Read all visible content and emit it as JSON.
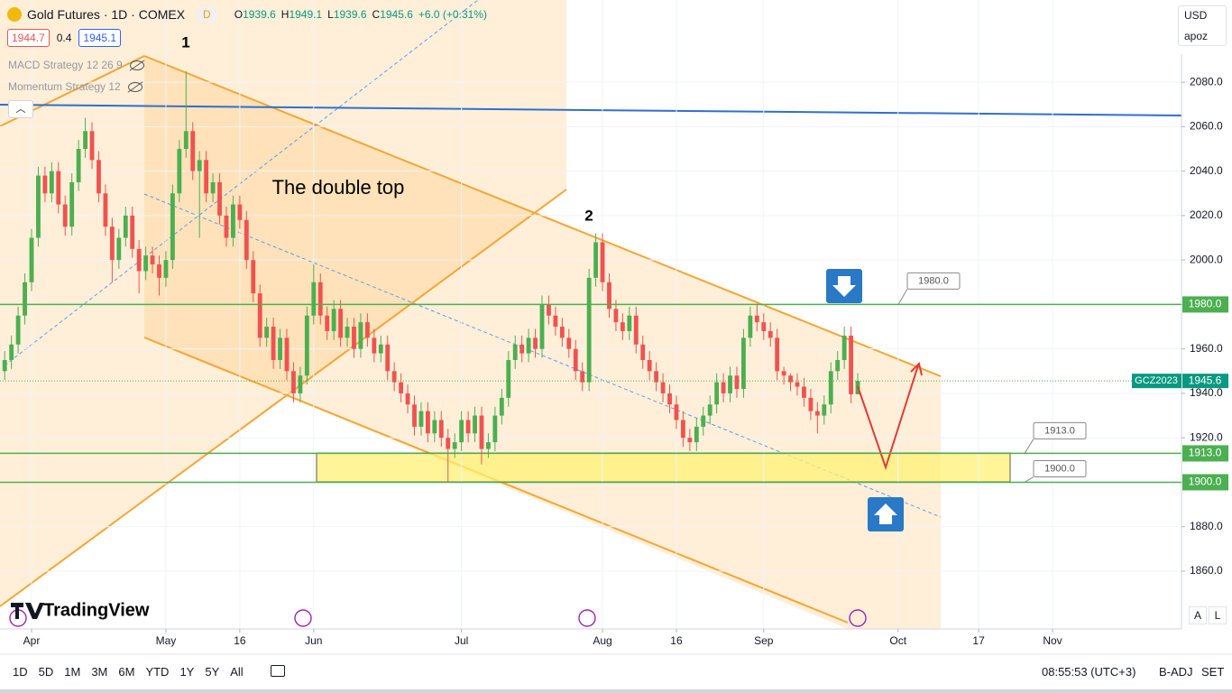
{
  "header": {
    "symbol": "Gold Futures · 1D · COMEX",
    "badge": "D",
    "ohlc_labels": [
      "O",
      "H",
      "L",
      "C"
    ],
    "change": "+6.0 (+0.31%)",
    "quote": {
      "bid": 1944.7,
      "spread": 0.4,
      "ask": 1945.1
    },
    "indicators": [
      "MACD Strategy 12 26 9",
      "Momentum Strategy 12"
    ]
  },
  "chart_data": {
    "type": "candlestick",
    "open": [
      1950,
      1955,
      1962,
      1975,
      1990,
      2010,
      2038,
      2030,
      2040,
      2025,
      2015,
      2035,
      2050,
      2058,
      2045,
      2030,
      2015,
      2000,
      2010,
      2020,
      2005,
      1995,
      2002,
      1998,
      1992,
      2000,
      2030,
      2050,
      2058,
      2040,
      2045,
      2030,
      2035,
      2020,
      2010,
      2025,
      2018,
      2000,
      1985,
      1965,
      1970,
      1955,
      1965,
      1950,
      1940,
      1948,
      1975,
      1990,
      1975,
      1968,
      1978,
      1965,
      1970,
      1960,
      1972,
      1965,
      1958,
      1962,
      1950,
      1945,
      1940,
      1935,
      1925,
      1932,
      1922,
      1928,
      1920,
      1915,
      1918,
      1928,
      1922,
      1930,
      1915,
      1918,
      1930,
      1938,
      1955,
      1962,
      1958,
      1965,
      1960,
      1980,
      1975,
      1970,
      1965,
      1960,
      1950,
      1945,
      1992,
      2008,
      1990,
      1978,
      1972,
      1968,
      1975,
      1962,
      1955,
      1950,
      1945,
      1940,
      1935,
      1928,
      1920,
      1918,
      1925,
      1930,
      1935,
      1945,
      1940,
      1948,
      1942,
      1965,
      1975,
      1972,
      1968,
      1965,
      1950,
      1948,
      1945,
      1943,
      1938,
      1932,
      1930,
      1935,
      1950,
      1955,
      1966,
      1939.6
    ],
    "high": [
      1959,
      1966,
      1979,
      1994,
      2014,
      2042,
      2042,
      2044,
      2044,
      2029,
      2039,
      2054,
      2064,
      2062,
      2049,
      2034,
      2019,
      2014,
      2024,
      2024,
      2009,
      2006,
      2006,
      2002,
      2004,
      2034,
      2054,
      2085,
      2062,
      2049,
      2049,
      2039,
      2039,
      2024,
      2029,
      2029,
      2022,
      2004,
      1989,
      1974,
      1974,
      1969,
      1969,
      1954,
      1952,
      1979,
      1998,
      1994,
      1979,
      1982,
      1982,
      1974,
      1974,
      1976,
      1976,
      1969,
      1966,
      1966,
      1954,
      1949,
      1944,
      1939,
      1936,
      1936,
      1932,
      1932,
      1924,
      1922,
      1932,
      1932,
      1934,
      1934,
      1922,
      1934,
      1942,
      1959,
      1966,
      1966,
      1969,
      1969,
      1984,
      1984,
      1979,
      1974,
      1969,
      1964,
      1954,
      1996,
      2012,
      2012,
      1994,
      1982,
      1976,
      1979,
      1979,
      1966,
      1959,
      1954,
      1949,
      1944,
      1939,
      1932,
      1924,
      1929,
      1934,
      1939,
      1949,
      1949,
      1952,
      1952,
      1969,
      1979,
      1980,
      1976,
      1972,
      1969,
      1952,
      1949,
      1949,
      1947,
      1942,
      1936,
      1939,
      1954,
      1959,
      1970,
      1970,
      1949.1
    ],
    "low": [
      1946,
      1951,
      1958,
      1971,
      1986,
      2006,
      2026,
      2026,
      2021,
      2011,
      2011,
      2031,
      2046,
      2041,
      2026,
      2011,
      1990,
      1996,
      2006,
      2001,
      1985,
      1991,
      1994,
      1984,
      1988,
      1996,
      2026,
      2046,
      2036,
      2010,
      2026,
      2026,
      2016,
      2006,
      2006,
      2014,
      1996,
      1981,
      1961,
      1961,
      1951,
      1951,
      1946,
      1936,
      1936,
      1944,
      1971,
      1971,
      1964,
      1964,
      1961,
      1961,
      1956,
      1956,
      1961,
      1954,
      1954,
      1946,
      1941,
      1936,
      1931,
      1921,
      1921,
      1918,
      1918,
      1916,
      1900,
      1911,
      1914,
      1918,
      1918,
      1908,
      1911,
      1914,
      1926,
      1934,
      1951,
      1954,
      1954,
      1956,
      1956,
      1971,
      1966,
      1961,
      1956,
      1946,
      1941,
      1941,
      1988,
      1986,
      1974,
      1968,
      1964,
      1964,
      1958,
      1951,
      1946,
      1941,
      1936,
      1931,
      1924,
      1916,
      1914,
      1914,
      1921,
      1926,
      1931,
      1936,
      1936,
      1938,
      1938,
      1961,
      1968,
      1964,
      1961,
      1946,
      1944,
      1941,
      1939,
      1934,
      1928,
      1922,
      1926,
      1931,
      1946,
      1951,
      1935.6,
      1939.6
    ],
    "close": [
      1955,
      1962,
      1975,
      1990,
      2010,
      2038,
      2030,
      2040,
      2025,
      2015,
      2035,
      2050,
      2058,
      2045,
      2030,
      2015,
      2000,
      2010,
      2020,
      2005,
      1995,
      2002,
      1998,
      1992,
      2000,
      2030,
      2050,
      2058,
      2040,
      2045,
      2030,
      2035,
      2020,
      2010,
      2025,
      2018,
      2000,
      1985,
      1965,
      1970,
      1955,
      1965,
      1950,
      1940,
      1948,
      1975,
      1990,
      1975,
      1968,
      1978,
      1965,
      1970,
      1960,
      1972,
      1965,
      1958,
      1962,
      1950,
      1945,
      1940,
      1935,
      1925,
      1932,
      1922,
      1928,
      1920,
      1915,
      1918,
      1928,
      1922,
      1930,
      1915,
      1918,
      1930,
      1938,
      1955,
      1962,
      1958,
      1965,
      1960,
      1980,
      1975,
      1970,
      1965,
      1960,
      1950,
      1945,
      1992,
      2008,
      1990,
      1978,
      1972,
      1968,
      1975,
      1962,
      1955,
      1950,
      1945,
      1940,
      1935,
      1928,
      1920,
      1918,
      1925,
      1930,
      1935,
      1945,
      1940,
      1948,
      1942,
      1965,
      1975,
      1972,
      1968,
      1965,
      1950,
      1948,
      1945,
      1943,
      1938,
      1932,
      1930,
      1935,
      1950,
      1955,
      1966,
      1939.6,
      1945.6
    ],
    "colors": {
      "up": "#4caf50",
      "down": "#ef5350",
      "level": "#4caf50"
    },
    "ylim": [
      1834,
      2117
    ],
    "yticks": [
      {
        "value": 1860,
        "label": "1860.0"
      },
      {
        "value": 1880,
        "label": "1880.0"
      },
      {
        "value": 1900,
        "label": "1900.0"
      },
      {
        "value": 1920,
        "label": "1920.0"
      },
      {
        "value": 1940,
        "label": "1940.0"
      },
      {
        "value": 1960,
        "label": "1960.0"
      },
      {
        "value": 1980,
        "label": "1980.0"
      },
      {
        "value": 2000,
        "label": "2000.0"
      },
      {
        "value": 2020,
        "label": "2020.0"
      },
      {
        "value": 2040,
        "label": "2040.0"
      },
      {
        "value": 2060,
        "label": "2060.0"
      },
      {
        "value": 2080,
        "label": "2080.0"
      }
    ],
    "xlim": [
      -0.7,
      175.2
    ],
    "xticks": [
      {
        "value": 4,
        "label": "Apr"
      },
      {
        "value": 24,
        "label": "May"
      },
      {
        "value": 35,
        "label": "16"
      },
      {
        "value": 46,
        "label": "Jun"
      },
      {
        "value": 68,
        "label": "Jul"
      },
      {
        "value": 89,
        "label": "Aug"
      },
      {
        "value": 100,
        "label": "16"
      },
      {
        "value": 113,
        "label": "Sep"
      },
      {
        "value": 133,
        "label": "Oct"
      },
      {
        "value": 145,
        "label": "17"
      },
      {
        "value": 156,
        "label": "Nov"
      }
    ],
    "grid": true,
    "levels": [
      {
        "value": 1980,
        "label": "1980.0"
      },
      {
        "value": 1913,
        "label": "1913.0"
      },
      {
        "value": 1900,
        "label": "1900.0"
      }
    ],
    "symbol_label": "GCZ2023",
    "annotations": [
      "1",
      "2",
      "The double top"
    ]
  },
  "logo": "TradingView",
  "right_panel": {
    "currency": "USD",
    "account": "apoz",
    "scale_buttons": [
      "A",
      "L"
    ]
  },
  "toolbar": {
    "timeframes": [
      "1D",
      "5D",
      "1M",
      "3M",
      "6M",
      "YTD",
      "1Y",
      "5Y",
      "All"
    ],
    "clock": "08:55:53 (UTC+3)",
    "adjust": "B-ADJ",
    "session": "SET"
  }
}
